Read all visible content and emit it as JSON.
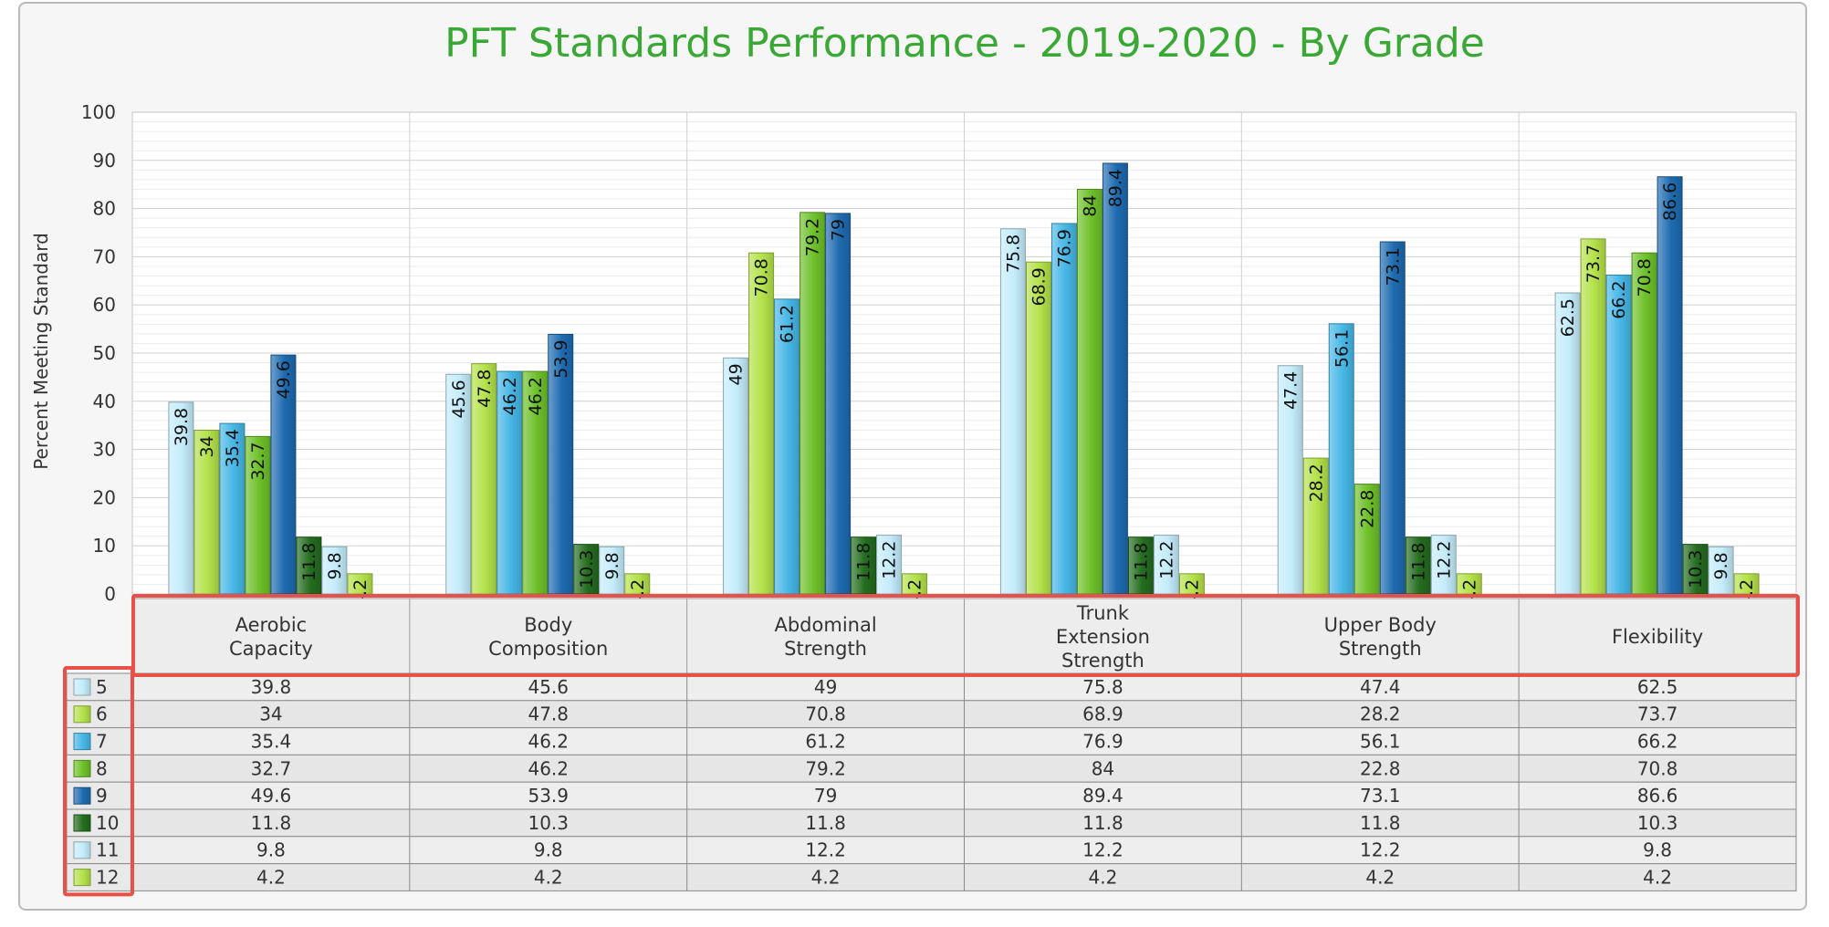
{
  "colors": {
    "5": "#c4ecfb",
    "6": "#b4e24a",
    "7": "#47b7e6",
    "8": "#6ec12a",
    "9": "#1e6bb0",
    "10": "#246d1f",
    "11": "#c4ecfb",
    "12": "#b4e24a",
    "highlight": "#e8504a",
    "title": "#3aa835"
  },
  "chart_data": {
    "type": "bar",
    "title": "PFT Standards Performance - 2019-2020 - By Grade",
    "xlabel": "",
    "ylabel": "Percent Meeting Standard",
    "ylim": [
      0,
      100
    ],
    "yticks": [
      0,
      10,
      20,
      30,
      40,
      50,
      60,
      70,
      80,
      90,
      100
    ],
    "grid": true,
    "legend": "data-table-left",
    "categories": [
      [
        "Aerobic",
        "Capacity"
      ],
      [
        "Body",
        "Composition"
      ],
      [
        "Abdominal",
        "Strength"
      ],
      [
        "Trunk",
        "Extension",
        "Strength"
      ],
      [
        "Upper Body",
        "Strength"
      ],
      [
        "Flexibility"
      ]
    ],
    "series": [
      {
        "name": "5",
        "values": [
          39.8,
          45.6,
          49,
          75.8,
          47.4,
          62.5
        ]
      },
      {
        "name": "6",
        "values": [
          34,
          47.8,
          70.8,
          68.9,
          28.2,
          73.7
        ]
      },
      {
        "name": "7",
        "values": [
          35.4,
          46.2,
          61.2,
          76.9,
          56.1,
          66.2
        ]
      },
      {
        "name": "8",
        "values": [
          32.7,
          46.2,
          79.2,
          84,
          22.8,
          70.8
        ]
      },
      {
        "name": "9",
        "values": [
          49.6,
          53.9,
          79,
          89.4,
          73.1,
          86.6
        ]
      },
      {
        "name": "10",
        "values": [
          11.8,
          10.3,
          11.8,
          11.8,
          11.8,
          10.3
        ]
      },
      {
        "name": "11",
        "values": [
          9.8,
          9.8,
          12.2,
          12.2,
          12.2,
          9.8
        ]
      },
      {
        "name": "12",
        "values": [
          4.2,
          4.2,
          4.2,
          4.2,
          4.2,
          4.2
        ]
      }
    ]
  }
}
